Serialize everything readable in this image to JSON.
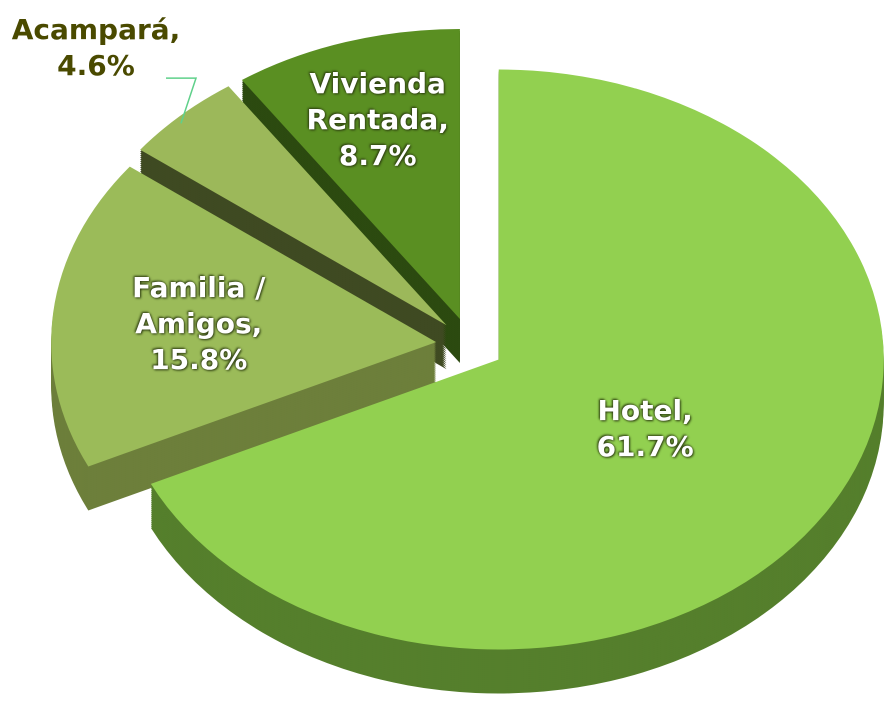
{
  "chart_data": {
    "type": "pie",
    "categories": [
      "Hotel,",
      "Familia / Amigos,",
      "Acampará,",
      "Vivienda Rentada,"
    ],
    "values": [
      61.7,
      15.8,
      4.6,
      8.7
    ],
    "value_labels": [
      "61.7%",
      "15.8%",
      "4.6%",
      "8.7%"
    ],
    "colors": [
      "#92d050",
      "#9bbb59",
      "#9cb85a",
      "#5a8f22"
    ]
  }
}
